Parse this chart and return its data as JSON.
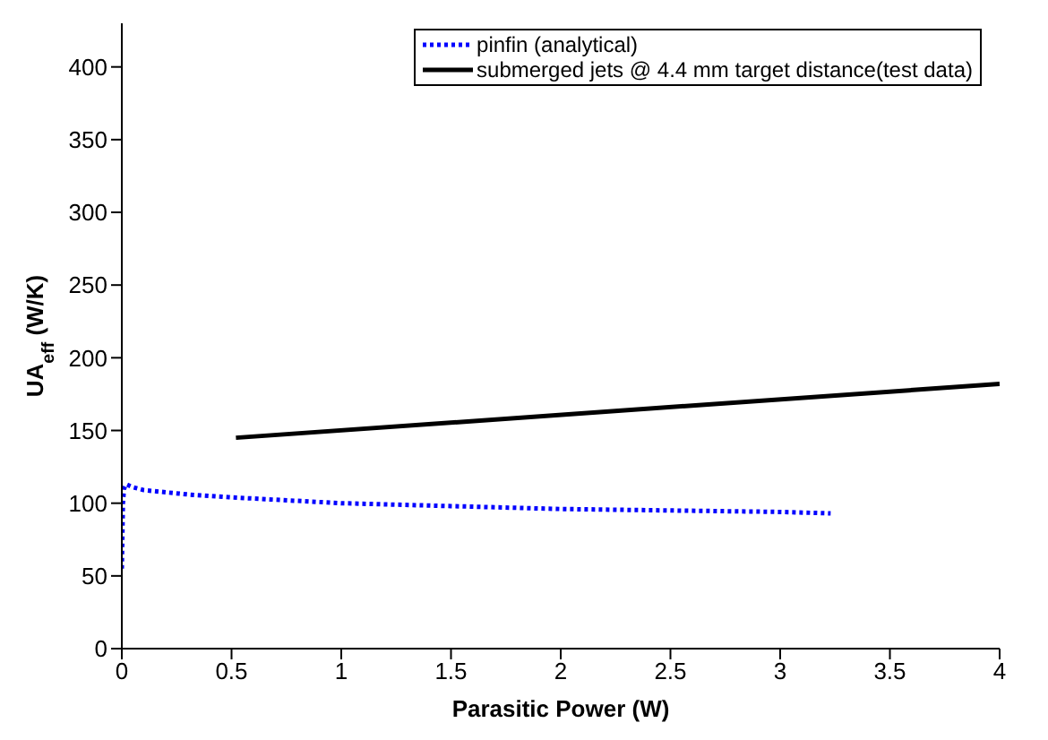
{
  "chart_data": {
    "type": "line",
    "xlabel": "Parasitic Power (W)",
    "ylabel": "UA$_{eff}$ (W/K)",
    "xlim": [
      0,
      4
    ],
    "xticks": [
      0,
      0.5,
      1,
      1.5,
      2,
      2.5,
      3,
      3.5,
      4
    ],
    "ylim": [
      0,
      430
    ],
    "yticks": [
      0,
      50,
      100,
      150,
      200,
      250,
      300,
      350,
      400
    ],
    "grid": false,
    "legend": "top right",
    "marker": "none",
    "series": [
      {
        "name": "pinfin (analytical)",
        "color": "#0000ff",
        "line_style": "dotted",
        "x": [
          0,
          0.005,
          0.01,
          0.02,
          0.05,
          0.1,
          0.3,
          0.5,
          1,
          1.5,
          2,
          2.5,
          3,
          3.23
        ],
        "values": [
          55,
          100,
          110,
          113,
          111,
          109,
          106,
          104,
          100,
          98,
          96,
          95,
          94,
          93
        ]
      },
      {
        "name": "submerged jets @ 4.4 mm target distance(test data)",
        "color": "#000000",
        "line_style": "solid",
        "x": [
          0.52,
          4
        ],
        "values": [
          145,
          182
        ]
      }
    ]
  }
}
